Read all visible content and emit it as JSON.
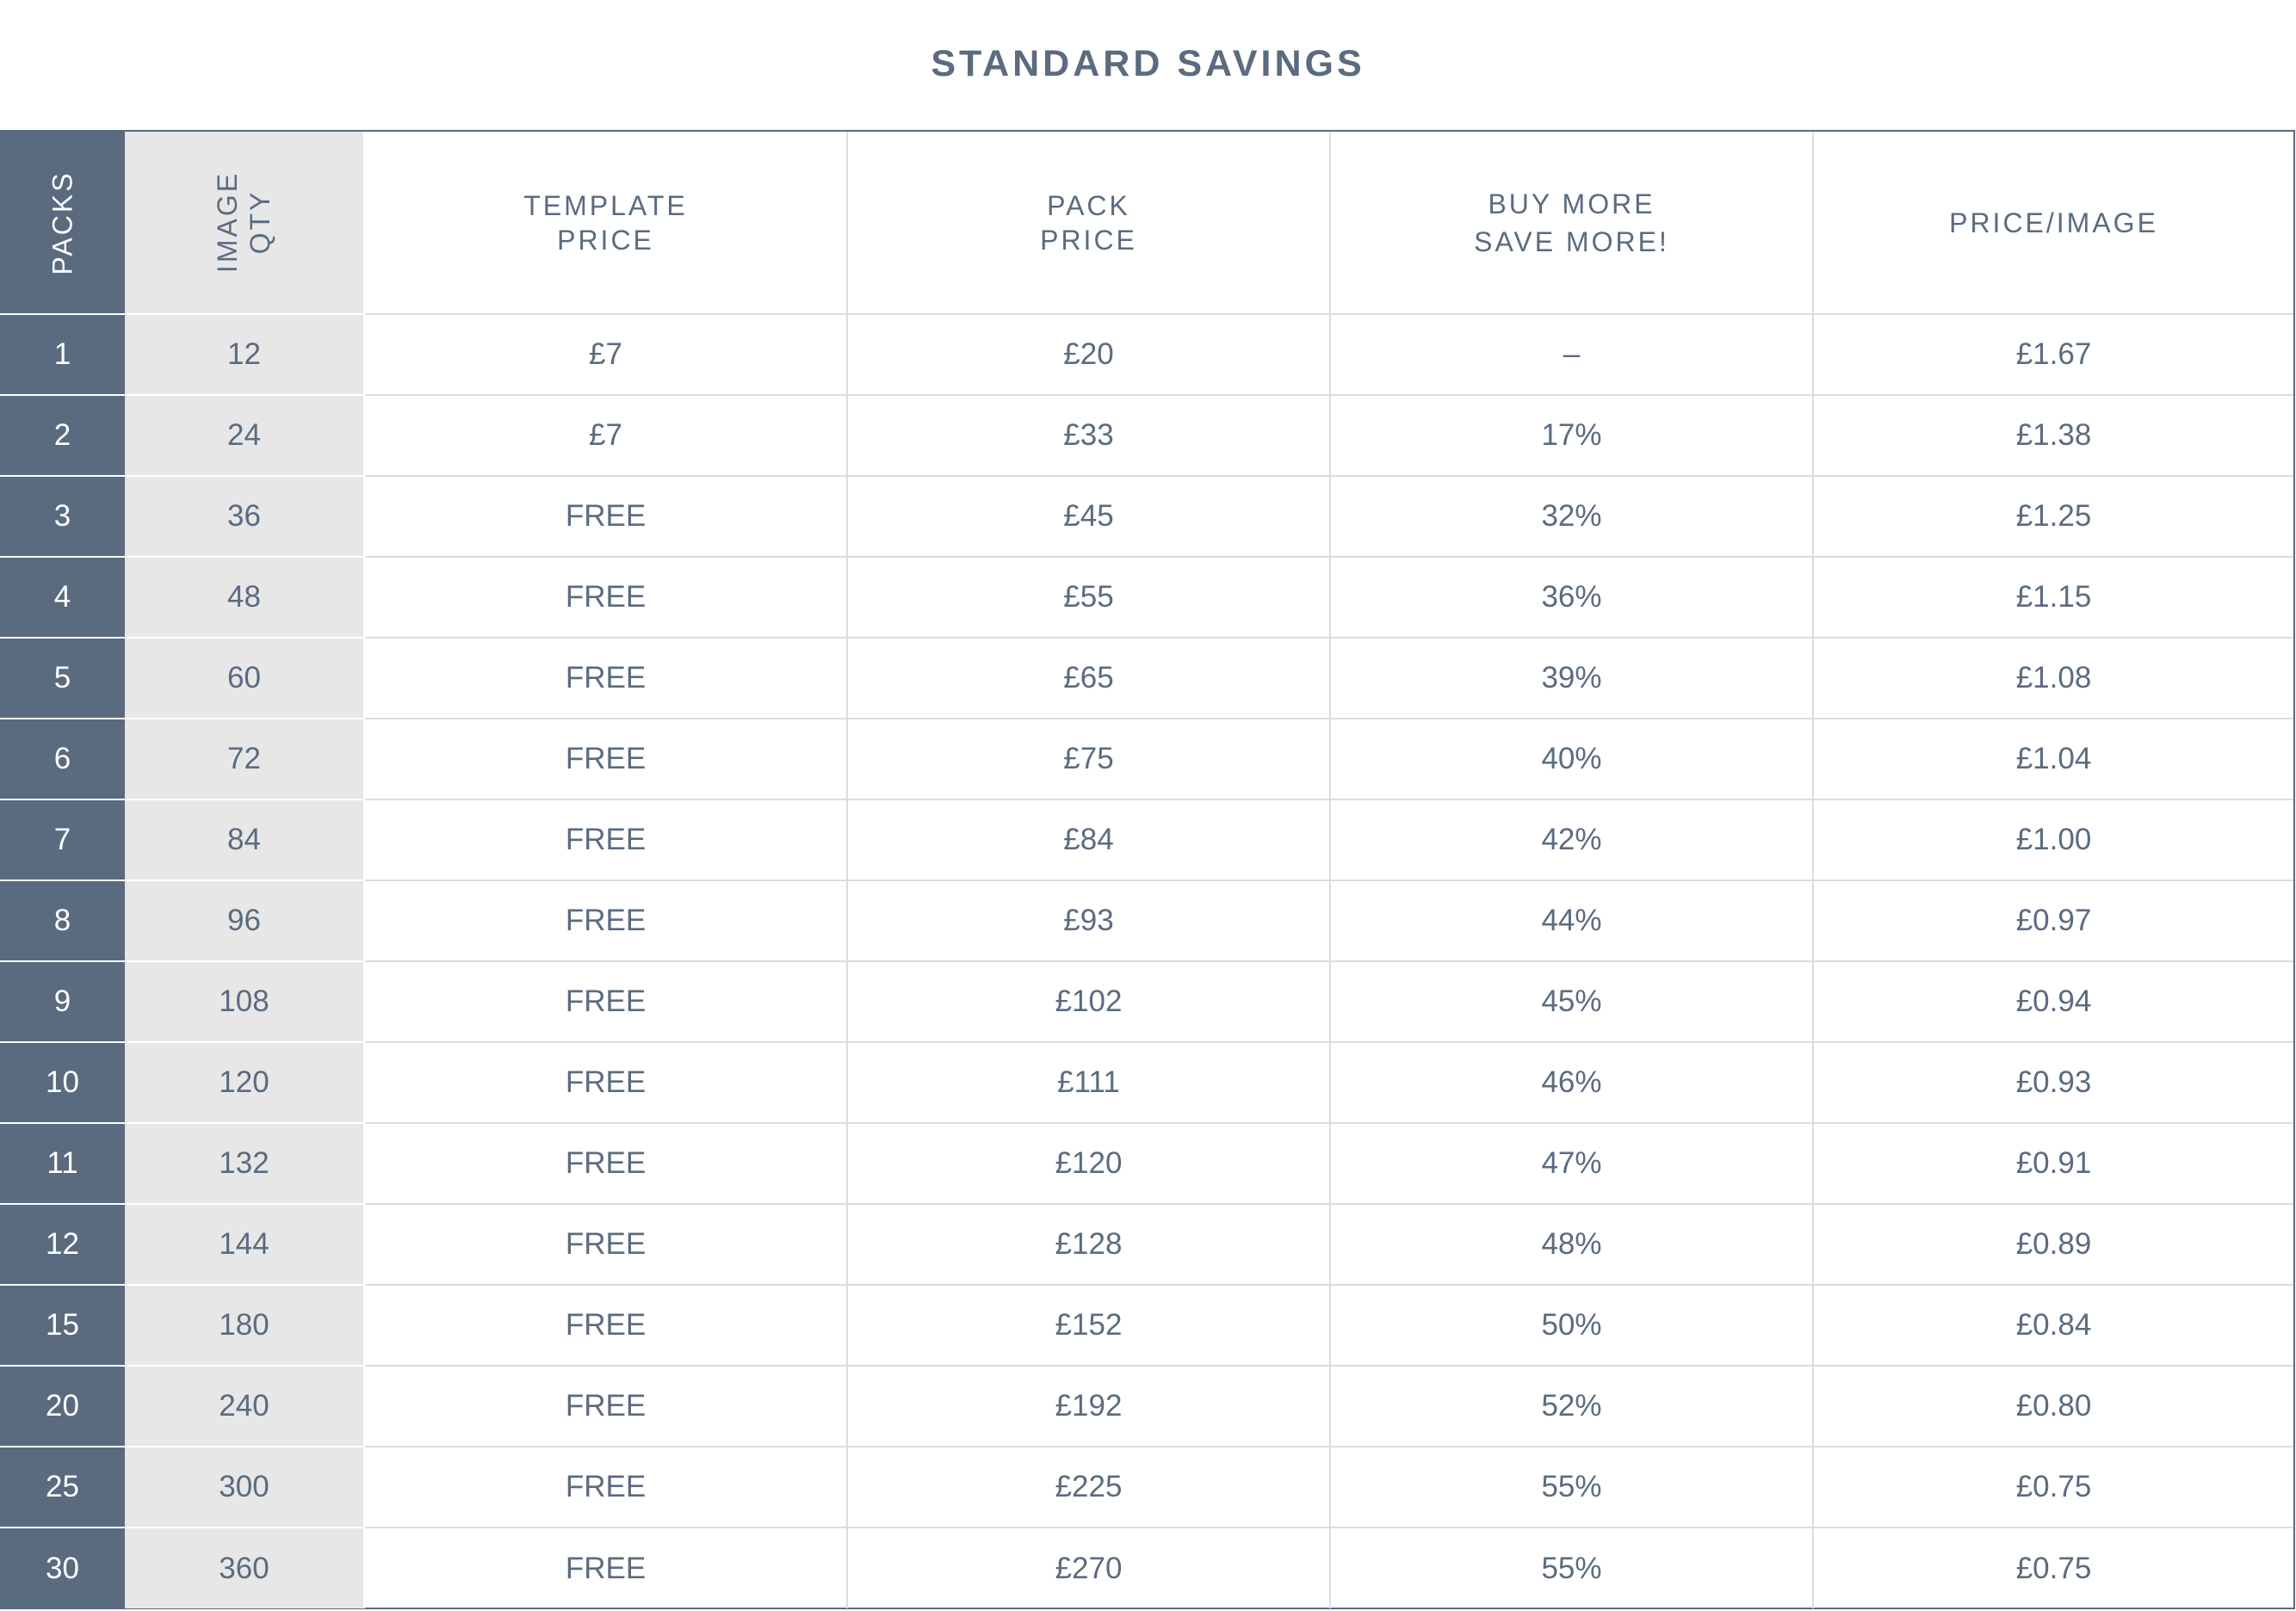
{
  "title": "STANDARD SAVINGS",
  "headers": {
    "packs": "PACKS",
    "image_qty": [
      "IMAGE",
      "QTY"
    ],
    "template_price": [
      "TEMPLATE",
      "PRICE"
    ],
    "pack_price": [
      "PACK",
      "PRICE"
    ],
    "buy_more": [
      "BUY MORE",
      "SAVE MORE!"
    ],
    "price_image": "PRICE/IMAGE"
  },
  "rows": [
    {
      "packs": "1",
      "qty": "12",
      "template": "£7",
      "pack": "£20",
      "save": "–",
      "per": "£1.67"
    },
    {
      "packs": "2",
      "qty": "24",
      "template": "£7",
      "pack": "£33",
      "save": "17%",
      "per": "£1.38"
    },
    {
      "packs": "3",
      "qty": "36",
      "template": "FREE",
      "pack": "£45",
      "save": "32%",
      "per": "£1.25"
    },
    {
      "packs": "4",
      "qty": "48",
      "template": "FREE",
      "pack": "£55",
      "save": "36%",
      "per": "£1.15"
    },
    {
      "packs": "5",
      "qty": "60",
      "template": "FREE",
      "pack": "£65",
      "save": "39%",
      "per": "£1.08"
    },
    {
      "packs": "6",
      "qty": "72",
      "template": "FREE",
      "pack": "£75",
      "save": "40%",
      "per": "£1.04"
    },
    {
      "packs": "7",
      "qty": "84",
      "template": "FREE",
      "pack": "£84",
      "save": "42%",
      "per": "£1.00"
    },
    {
      "packs": "8",
      "qty": "96",
      "template": "FREE",
      "pack": "£93",
      "save": "44%",
      "per": "£0.97"
    },
    {
      "packs": "9",
      "qty": "108",
      "template": "FREE",
      "pack": "£102",
      "save": "45%",
      "per": "£0.94"
    },
    {
      "packs": "10",
      "qty": "120",
      "template": "FREE",
      "pack": "£111",
      "save": "46%",
      "per": "£0.93"
    },
    {
      "packs": "11",
      "qty": "132",
      "template": "FREE",
      "pack": "£120",
      "save": "47%",
      "per": "£0.91"
    },
    {
      "packs": "12",
      "qty": "144",
      "template": "FREE",
      "pack": "£128",
      "save": "48%",
      "per": "£0.89"
    },
    {
      "packs": "15",
      "qty": "180",
      "template": "FREE",
      "pack": "£152",
      "save": "50%",
      "per": "£0.84"
    },
    {
      "packs": "20",
      "qty": "240",
      "template": "FREE",
      "pack": "£192",
      "save": "52%",
      "per": "£0.80"
    },
    {
      "packs": "25",
      "qty": "300",
      "template": "FREE",
      "pack": "£225",
      "save": "55%",
      "per": "£0.75"
    },
    {
      "packs": "30",
      "qty": "360",
      "template": "FREE",
      "pack": "£270",
      "save": "55%",
      "per": "£0.75"
    }
  ],
  "colors": {
    "dark_column": "#5a6b80",
    "light_column": "#e7e7e7",
    "text": "#5b6b80",
    "grid": "#d9dde2"
  }
}
